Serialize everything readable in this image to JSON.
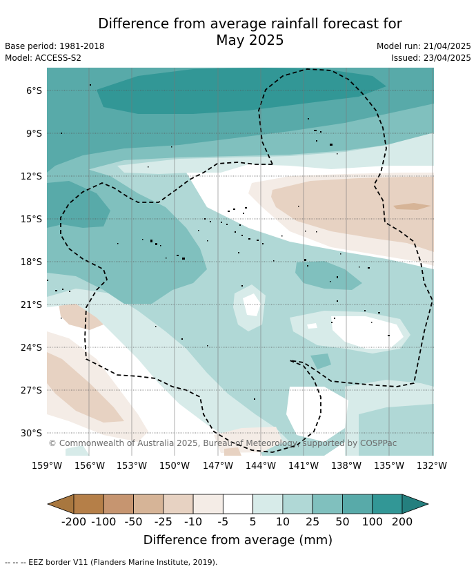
{
  "title": {
    "line1": "Difference from average rainfall forecast for",
    "line2": "May 2025"
  },
  "meta_left": {
    "base_period": "Base period: 1981-2018",
    "model": "Model: ACCESS-S2"
  },
  "meta_right": {
    "model_run": "Model run: 21/04/2025",
    "issued": "Issued: 23/04/2025"
  },
  "map": {
    "latitude_labels": [
      "6°S",
      "9°S",
      "12°S",
      "15°S",
      "18°S",
      "21°S",
      "24°S",
      "27°S",
      "30°S"
    ],
    "longitude_labels": [
      "159°W",
      "156°W",
      "153°W",
      "150°W",
      "147°W",
      "144°W",
      "141°W",
      "138°W",
      "135°W",
      "132°W"
    ],
    "copyright": "© Commonwealth of Australia 2025, Bureau of Meteorology, supported by COSPPac"
  },
  "colorbar": {
    "ticks": [
      "-200",
      "-100",
      "-50",
      "-25",
      "-10",
      "-5",
      "5",
      "10",
      "25",
      "50",
      "100",
      "200"
    ],
    "colors": [
      "#a8773f",
      "#b57f48",
      "#c69570",
      "#d6b497",
      "#e7d2c2",
      "#f4ece6",
      "#ffffff",
      "#d7ebe9",
      "#b0d8d6",
      "#80c0be",
      "#58aaa9",
      "#329796",
      "#247f7e"
    ],
    "label": "Difference from average (mm)"
  },
  "footer": {
    "legend": "--  --  -- EEZ border V11 (Flanders Marine Institute, 2019)."
  }
}
